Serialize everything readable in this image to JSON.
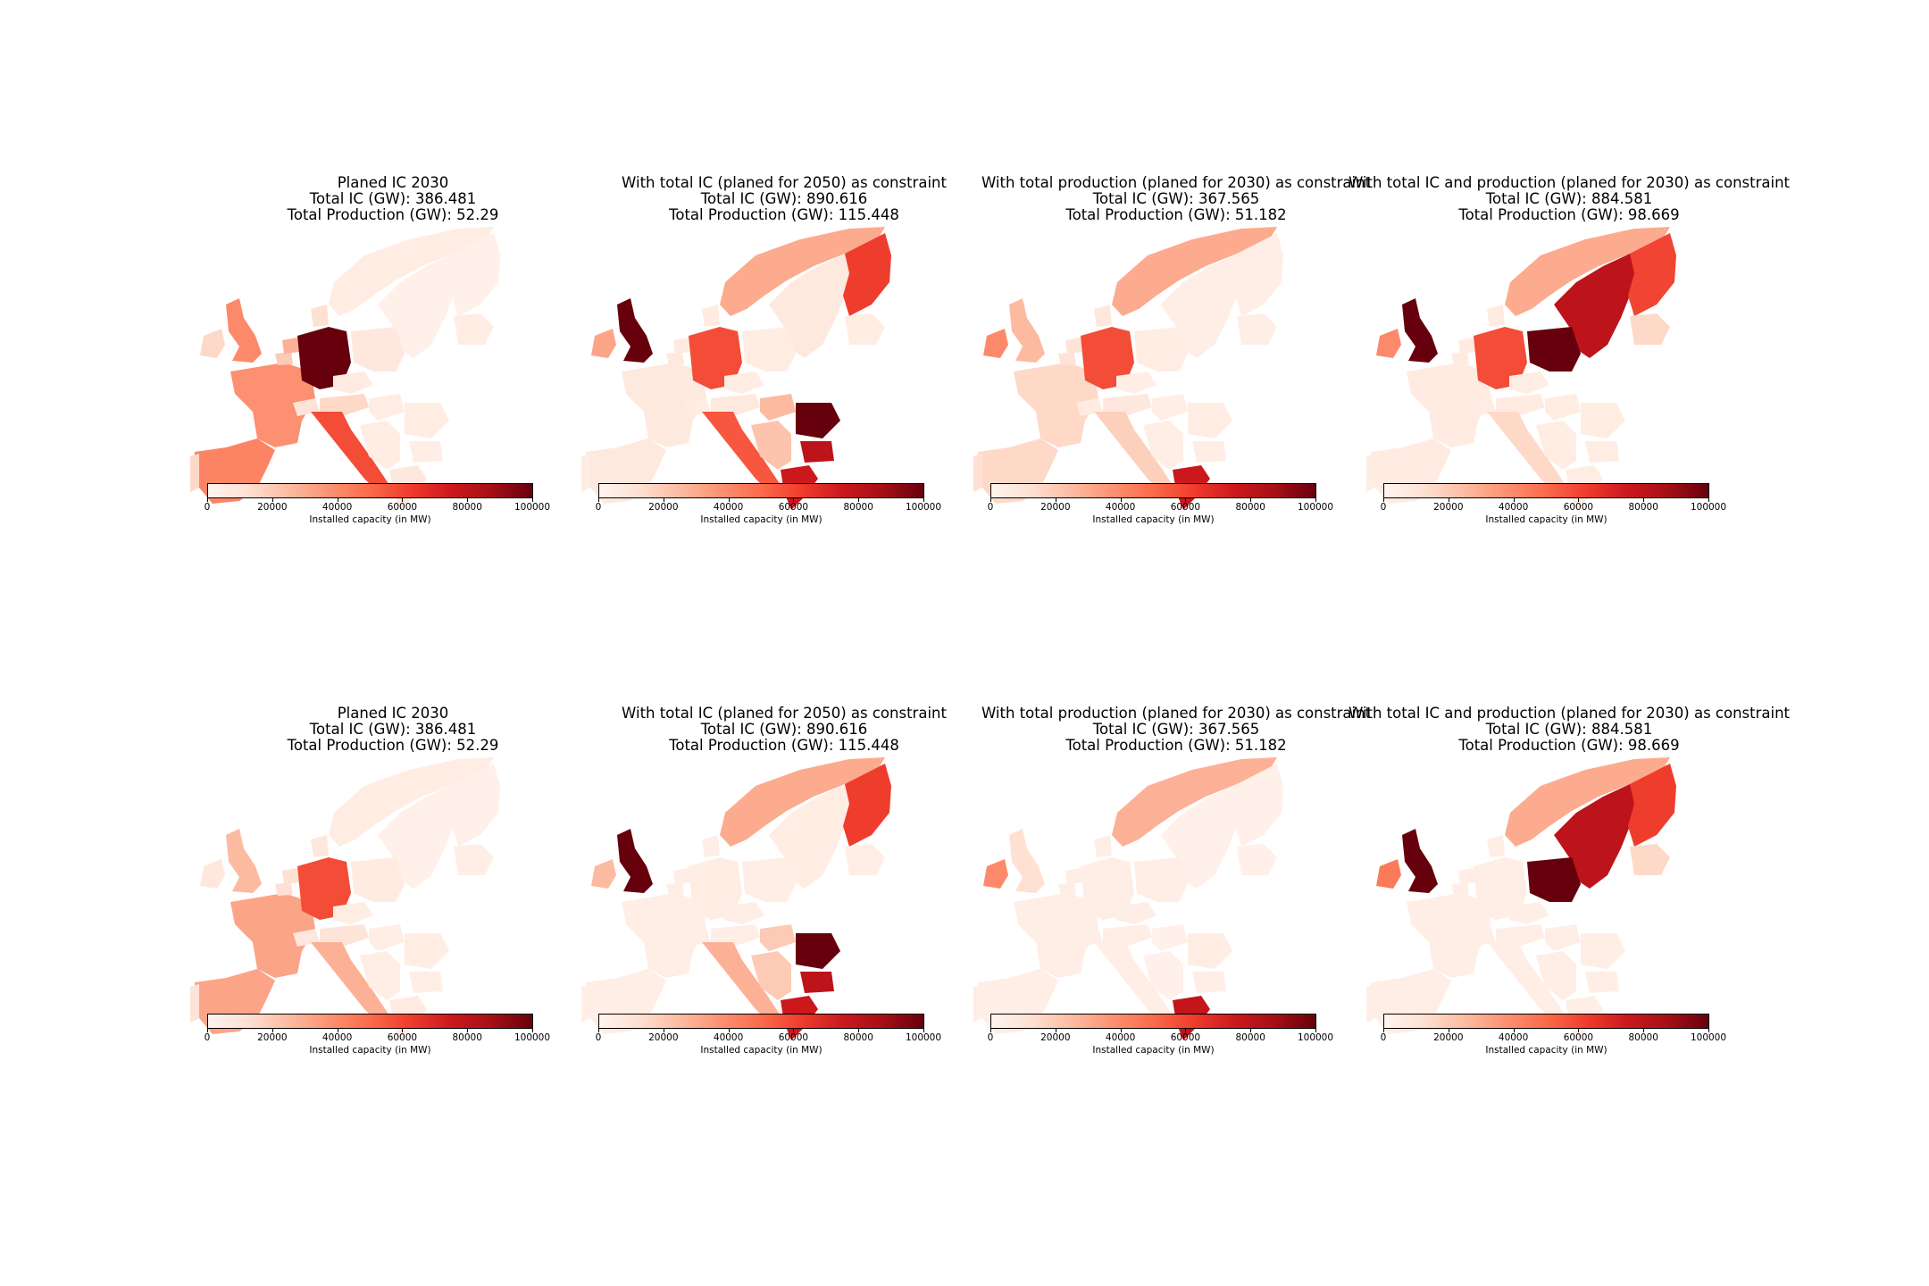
{
  "colors": {
    "cmap": [
      "#fff5f0",
      "#fee0d2",
      "#fcbba1",
      "#fc9272",
      "#fb6a4a",
      "#ef3b2c",
      "#cb181d",
      "#a50f15",
      "#67000d"
    ]
  },
  "chart_data": [
    {
      "type": "choropleth",
      "title_lines": [
        "Planed IC 2030",
        "Total IC (GW): 386.481",
        "Total Production (GW): 52.29"
      ],
      "colorbar": {
        "label": "Installed capacity (in MW)",
        "ticks": [
          "0",
          "20000",
          "40000",
          "60000",
          "80000",
          "100000"
        ],
        "range": [
          0,
          100000
        ]
      },
      "countries": {
        "UK": 40000,
        "IE": 15000,
        "FR": 38000,
        "ES": 42000,
        "PT": 15000,
        "DE": 100000,
        "IT": 58000,
        "NL": 28000,
        "BE": 20000,
        "CH": 10000,
        "AT": 15000,
        "NO": 5000,
        "SE": 3000,
        "FI": 3000,
        "DK": 12000,
        "PL": 8000,
        "CZ": 6000,
        "RO": 5000,
        "BG": 4000,
        "GR": 8000,
        "BAL": 5000,
        "HU": 5000,
        "BALK": 5000
      }
    },
    {
      "type": "choropleth",
      "title_lines": [
        "With total IC (planed for 2050) as constraint",
        "Total IC (GW): 890.616",
        "Total Production (GW): 115.448"
      ],
      "colorbar": {
        "label": "Installed capacity (in MW)",
        "ticks": [
          "0",
          "20000",
          "40000",
          "60000",
          "80000",
          "100000"
        ],
        "range": [
          0,
          100000
        ]
      },
      "countries": {
        "UK": 100000,
        "IE": 32000,
        "FR": 7000,
        "ES": 7000,
        "PT": 5000,
        "DE": 58000,
        "IT": 55000,
        "NL": 7000,
        "BE": 7000,
        "CH": 5000,
        "AT": 7000,
        "NO": 30000,
        "SE": 7000,
        "FI": 62000,
        "DK": 6000,
        "PL": 5000,
        "CZ": 5000,
        "RO": 100000,
        "BG": 80000,
        "GR": 75000,
        "BAL": 5000,
        "HU": 25000,
        "BALK": 22000
      }
    },
    {
      "type": "choropleth",
      "title_lines": [
        "With total production (planed for 2030) as constraint",
        "Total IC (GW): 367.565",
        "Total Production (GW): 51.182"
      ],
      "colorbar": {
        "label": "Installed capacity (in MW)",
        "ticks": [
          "0",
          "20000",
          "40000",
          "60000",
          "80000",
          "100000"
        ],
        "range": [
          0,
          100000
        ]
      },
      "countries": {
        "UK": 25000,
        "IE": 40000,
        "FR": 15000,
        "ES": 15000,
        "PT": 12000,
        "DE": 58000,
        "IT": 18000,
        "NL": 10000,
        "BE": 10000,
        "CH": 6000,
        "AT": 8000,
        "NO": 30000,
        "SE": 4000,
        "FI": 4000,
        "DK": 8000,
        "PL": 5000,
        "CZ": 4000,
        "RO": 5000,
        "BG": 5000,
        "GR": 75000,
        "BAL": 4000,
        "HU": 4000,
        "BALK": 4000
      }
    },
    {
      "type": "choropleth",
      "title_lines": [
        "With total IC and production (planed for 2030) as constraint",
        "Total IC (GW): 884.581",
        "Total Production (GW): 98.669"
      ],
      "colorbar": {
        "label": "Installed capacity (in MW)",
        "ticks": [
          "0",
          "20000",
          "40000",
          "60000",
          "80000",
          "100000"
        ],
        "range": [
          0,
          100000
        ]
      },
      "countries": {
        "UK": 100000,
        "IE": 40000,
        "FR": 6000,
        "ES": 6000,
        "PT": 5000,
        "DE": 58000,
        "IT": 15000,
        "NL": 6000,
        "BE": 6000,
        "CH": 5000,
        "AT": 6000,
        "NO": 30000,
        "SE": 80000,
        "FI": 60000,
        "DK": 6000,
        "PL": 100000,
        "CZ": 5000,
        "RO": 5000,
        "BG": 5000,
        "GR": 5000,
        "BAL": 15000,
        "HU": 5000,
        "BALK": 5000
      }
    },
    {
      "type": "choropleth",
      "title_lines": [
        "Planed IC 2030",
        "Total IC (GW): 386.481",
        "Total Production (GW): 52.29"
      ],
      "colorbar": {
        "label": "Installed capacity (in MW)",
        "ticks": [
          "0",
          "20000",
          "40000",
          "60000",
          "80000",
          "100000"
        ],
        "range": [
          0,
          100000
        ]
      },
      "countries": {
        "UK": 25000,
        "IE": 8000,
        "FR": 32000,
        "ES": 32000,
        "PT": 10000,
        "DE": 58000,
        "IT": 28000,
        "NL": 12000,
        "BE": 12000,
        "CH": 8000,
        "AT": 10000,
        "NO": 5000,
        "SE": 3000,
        "FI": 3000,
        "DK": 8000,
        "PL": 6000,
        "CZ": 5000,
        "RO": 5000,
        "BG": 4000,
        "GR": 6000,
        "BAL": 4000,
        "HU": 4000,
        "BALK": 4000
      }
    },
    {
      "type": "choropleth",
      "title_lines": [
        "With total IC (planed for 2050) as constraint",
        "Total IC (GW): 890.616",
        "Total Production (GW): 115.448"
      ],
      "colorbar": {
        "label": "Installed capacity (in MW)",
        "ticks": [
          "0",
          "20000",
          "40000",
          "60000",
          "80000",
          "100000"
        ],
        "range": [
          0,
          100000
        ]
      },
      "countries": {
        "UK": 100000,
        "IE": 25000,
        "FR": 4000,
        "ES": 4000,
        "PT": 4000,
        "DE": 5000,
        "IT": 28000,
        "NL": 4000,
        "BE": 4000,
        "CH": 4000,
        "AT": 4000,
        "NO": 30000,
        "SE": 5000,
        "FI": 62000,
        "DK": 4000,
        "PL": 4000,
        "CZ": 4000,
        "RO": 100000,
        "BG": 80000,
        "GR": 75000,
        "BAL": 4000,
        "HU": 20000,
        "BALK": 20000
      }
    },
    {
      "type": "choropleth",
      "title_lines": [
        "With total production (planed for 2030) as constraint",
        "Total IC (GW): 367.565",
        "Total Production (GW): 51.182"
      ],
      "colorbar": {
        "label": "Installed capacity (in MW)",
        "ticks": [
          "0",
          "20000",
          "40000",
          "60000",
          "80000",
          "100000"
        ],
        "range": [
          0,
          100000
        ]
      },
      "countries": {
        "UK": 12000,
        "IE": 40000,
        "FR": 4000,
        "ES": 4000,
        "PT": 4000,
        "DE": 4000,
        "IT": 4000,
        "NL": 4000,
        "BE": 4000,
        "CH": 4000,
        "AT": 4000,
        "NO": 28000,
        "SE": 3000,
        "FI": 3000,
        "DK": 4000,
        "PL": 4000,
        "CZ": 4000,
        "RO": 5000,
        "BG": 4000,
        "GR": 78000,
        "BAL": 3000,
        "HU": 3000,
        "BALK": 3000
      }
    },
    {
      "type": "choropleth",
      "title_lines": [
        "With total IC and production (planed for 2030) as constraint",
        "Total IC (GW): 884.581",
        "Total Production (GW): 98.669"
      ],
      "colorbar": {
        "label": "Installed capacity (in MW)",
        "ticks": [
          "0",
          "20000",
          "40000",
          "60000",
          "80000",
          "100000"
        ],
        "range": [
          0,
          100000
        ]
      },
      "countries": {
        "UK": 100000,
        "IE": 45000,
        "FR": 4000,
        "ES": 4000,
        "PT": 4000,
        "DE": 4000,
        "IT": 4000,
        "NL": 4000,
        "BE": 4000,
        "CH": 4000,
        "AT": 4000,
        "NO": 30000,
        "SE": 80000,
        "FI": 62000,
        "DK": 4000,
        "PL": 100000,
        "CZ": 4000,
        "RO": 4000,
        "BG": 4000,
        "GR": 4000,
        "BAL": 15000,
        "HU": 4000,
        "BALK": 4000
      }
    }
  ]
}
